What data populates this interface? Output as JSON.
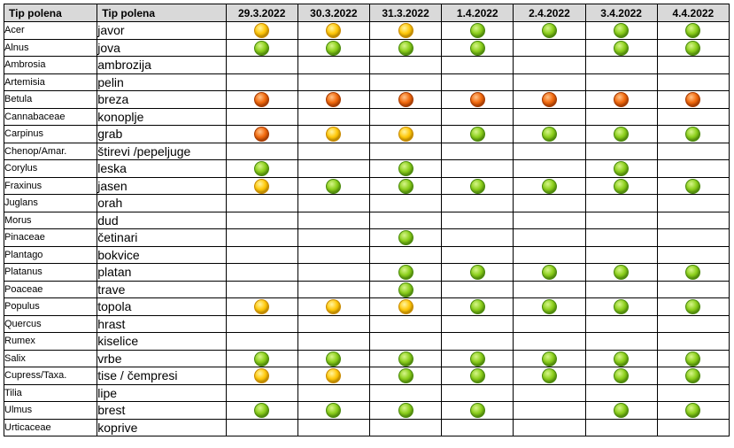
{
  "table": {
    "header": {
      "latin_col": "Tip polena",
      "local_col": "Tip polena",
      "dates": [
        "29.3.2022",
        "30.3.2022",
        "31.3.2022",
        "1.4.2022",
        "2.4.2022",
        "3.4.2022",
        "4.4.2022"
      ]
    },
    "level_colors": {
      "green": "#8ccf1c",
      "yellow": "#ffc80a",
      "orange": "#f26a0e"
    },
    "rows": [
      {
        "latin": "Acer",
        "local": "javor",
        "levels": [
          "yellow",
          "yellow",
          "yellow",
          "green",
          "green",
          "green",
          "green"
        ]
      },
      {
        "latin": "Alnus",
        "local": "jova",
        "levels": [
          "green",
          "green",
          "green",
          "green",
          "",
          "green",
          "green"
        ]
      },
      {
        "latin": "Ambrosia",
        "local": "ambrozija",
        "levels": [
          "",
          "",
          "",
          "",
          "",
          "",
          ""
        ]
      },
      {
        "latin": "Artemisia",
        "local": "pelin",
        "levels": [
          "",
          "",
          "",
          "",
          "",
          "",
          ""
        ]
      },
      {
        "latin": "Betula",
        "local": "breza",
        "levels": [
          "orange",
          "orange",
          "orange",
          "orange",
          "orange",
          "orange",
          "orange"
        ]
      },
      {
        "latin": "Cannabaceae",
        "local": "konoplje",
        "levels": [
          "",
          "",
          "",
          "",
          "",
          "",
          ""
        ]
      },
      {
        "latin": "Carpinus",
        "local": "grab",
        "levels": [
          "orange",
          "yellow",
          "yellow",
          "green",
          "green",
          "green",
          "green"
        ]
      },
      {
        "latin": "Chenop/Amar.",
        "local": "štirevi /pepeljuge",
        "levels": [
          "",
          "",
          "",
          "",
          "",
          "",
          ""
        ]
      },
      {
        "latin": "Corylus",
        "local": "leska",
        "levels": [
          "green",
          "",
          "green",
          "",
          "",
          "green",
          ""
        ]
      },
      {
        "latin": "Fraxinus",
        "local": "jasen",
        "levels": [
          "yellow",
          "green",
          "green",
          "green",
          "green",
          "green",
          "green"
        ]
      },
      {
        "latin": "Juglans",
        "local": "orah",
        "levels": [
          "",
          "",
          "",
          "",
          "",
          "",
          ""
        ]
      },
      {
        "latin": "Morus",
        "local": "dud",
        "levels": [
          "",
          "",
          "",
          "",
          "",
          "",
          ""
        ]
      },
      {
        "latin": "Pinaceae",
        "local": "četinari",
        "levels": [
          "",
          "",
          "green",
          "",
          "",
          "",
          ""
        ]
      },
      {
        "latin": "Plantago",
        "local": "bokvice",
        "levels": [
          "",
          "",
          "",
          "",
          "",
          "",
          ""
        ]
      },
      {
        "latin": "Platanus",
        "local": "platan",
        "levels": [
          "",
          "",
          "green",
          "green",
          "green",
          "green",
          "green"
        ]
      },
      {
        "latin": "Poaceae",
        "local": "trave",
        "levels": [
          "",
          "",
          "green",
          "",
          "",
          "",
          ""
        ]
      },
      {
        "latin": "Populus",
        "local": "topola",
        "levels": [
          "yellow",
          "yellow",
          "yellow",
          "green",
          "green",
          "green",
          "green"
        ]
      },
      {
        "latin": "Quercus",
        "local": "hrast",
        "levels": [
          "",
          "",
          "",
          "",
          "",
          "",
          ""
        ]
      },
      {
        "latin": "Rumex",
        "local": "kiselice",
        "levels": [
          "",
          "",
          "",
          "",
          "",
          "",
          ""
        ]
      },
      {
        "latin": "Salix",
        "local": "vrbe",
        "levels": [
          "green",
          "green",
          "green",
          "green",
          "green",
          "green",
          "green"
        ]
      },
      {
        "latin": "Cupress/Taxa.",
        "local": "tise / čempresi",
        "levels": [
          "yellow",
          "yellow",
          "green",
          "green",
          "green",
          "green",
          "green"
        ]
      },
      {
        "latin": "Tilia",
        "local": "lipe",
        "levels": [
          "",
          "",
          "",
          "",
          "",
          "",
          ""
        ]
      },
      {
        "latin": "Ulmus",
        "local": "brest",
        "levels": [
          "green",
          "green",
          "green",
          "green",
          "",
          "green",
          "green"
        ]
      },
      {
        "latin": "Urticaceae",
        "local": "koprive",
        "levels": [
          "",
          "",
          "",
          "",
          "",
          "",
          ""
        ]
      }
    ]
  }
}
